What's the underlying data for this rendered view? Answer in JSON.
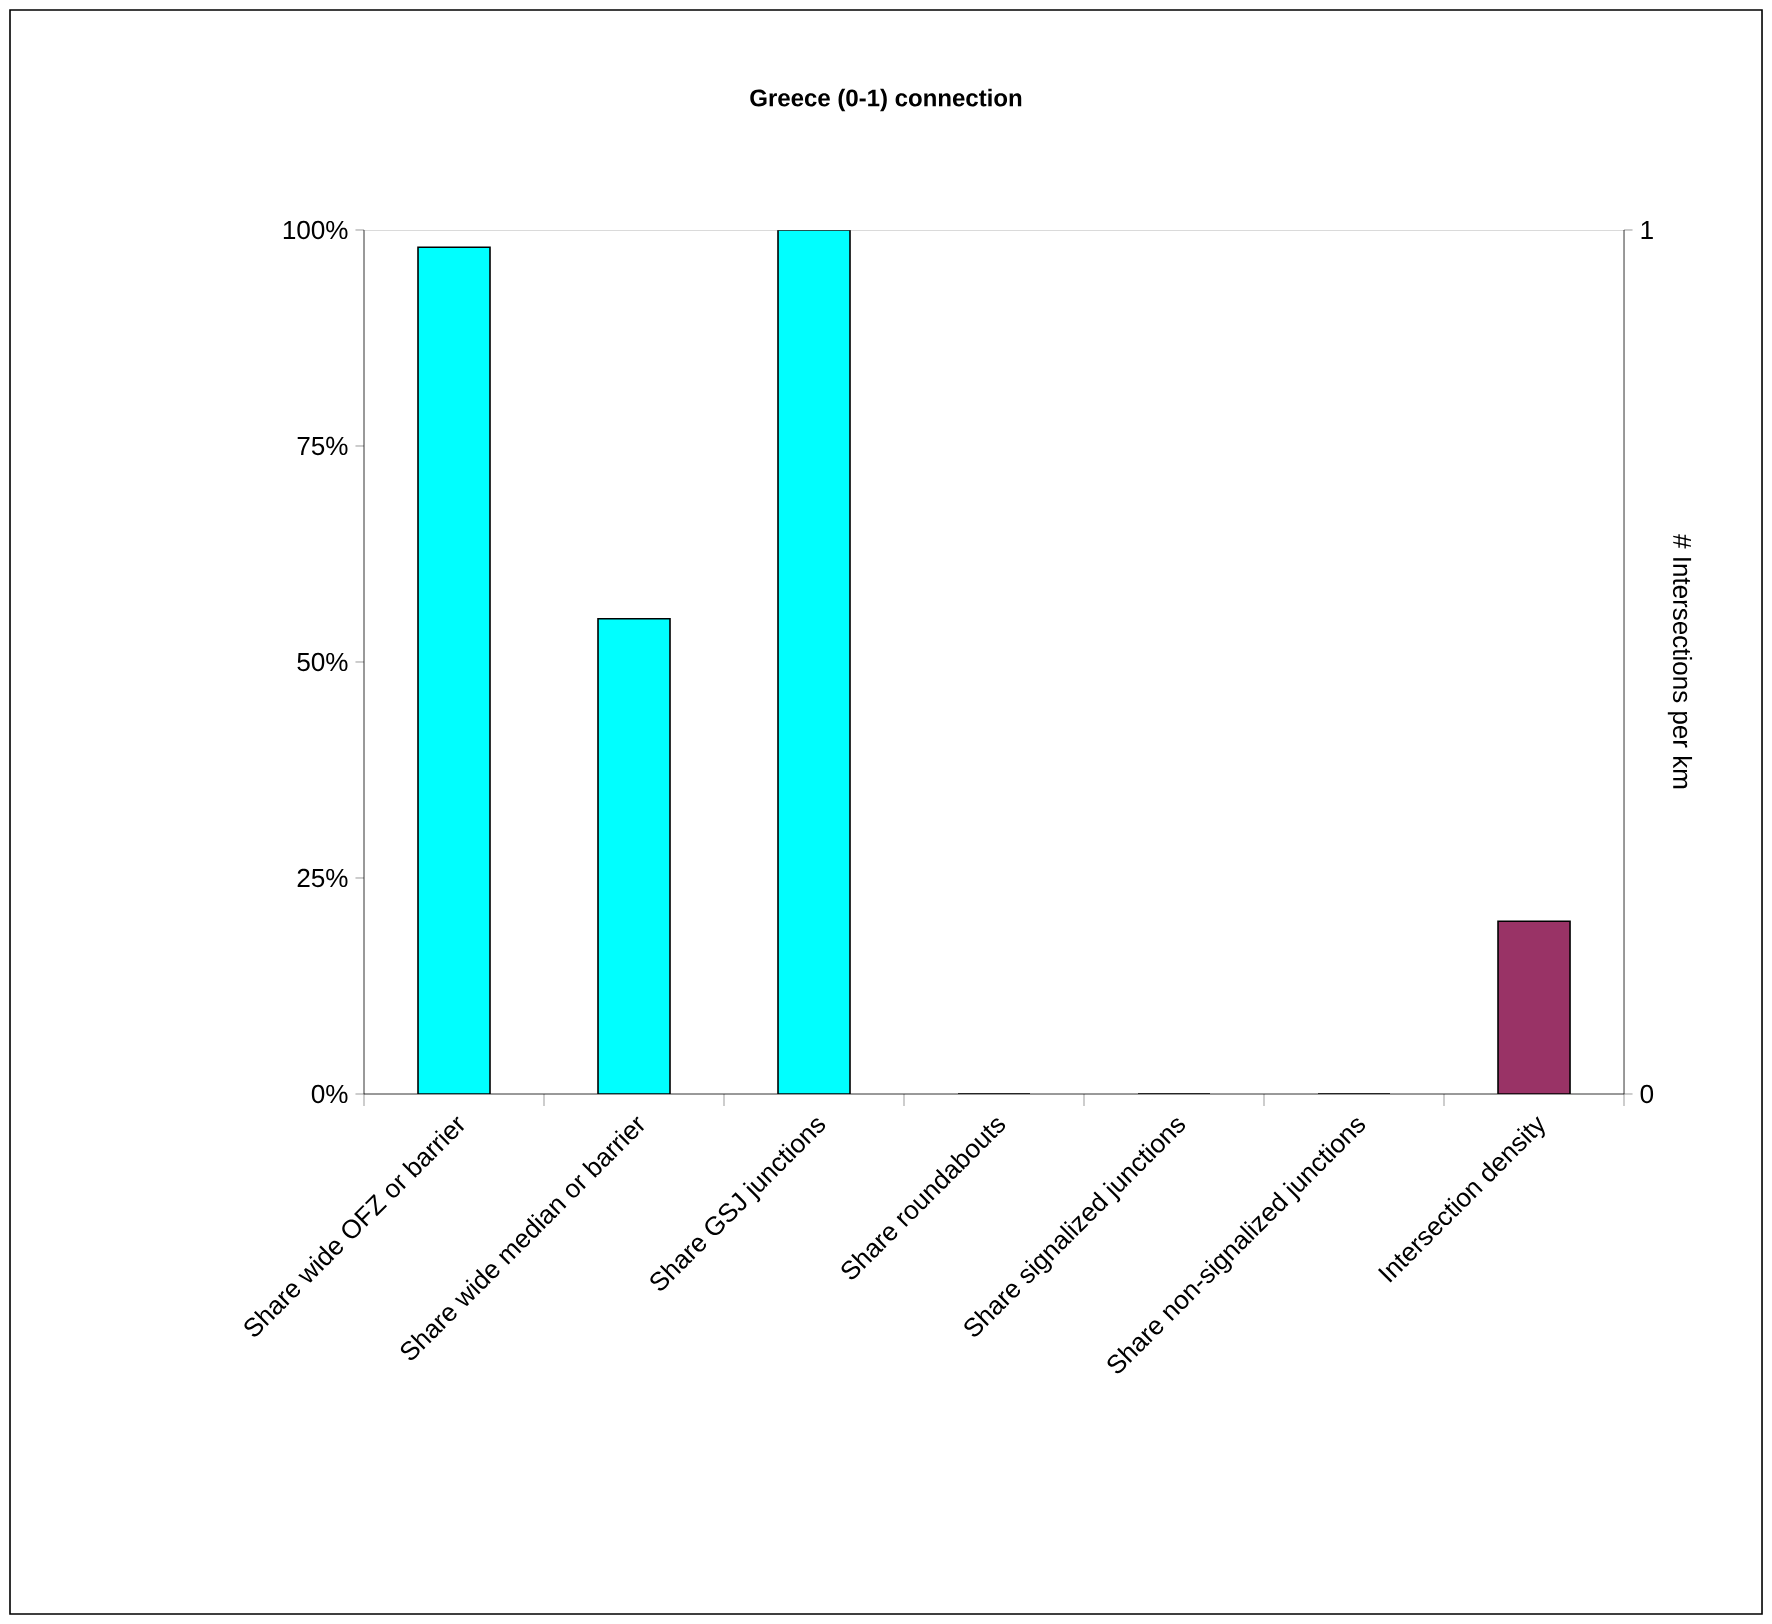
{
  "chart_data": {
    "type": "bar",
    "title": "Greece (0-1) connection",
    "y2label": "# Intersections per km",
    "categories": [
      "Share wide OFZ or barrier",
      "Share wide median or barrier",
      "Share GSJ junctions",
      "Share roundabouts",
      "Share signalized junctions",
      "Share non-signalized junctions",
      "Intersection density"
    ],
    "series": [
      {
        "color": "#00ffff",
        "values": [
          98,
          55,
          100,
          0,
          0,
          0,
          null
        ]
      },
      {
        "color": "#993366",
        "axis": "y2",
        "values": [
          null,
          null,
          null,
          null,
          null,
          null,
          0.2
        ]
      }
    ],
    "ylim": [
      0,
      100
    ],
    "yticks": [
      {
        "value": 0,
        "label": "0%"
      },
      {
        "value": 25,
        "label": "25%"
      },
      {
        "value": 50,
        "label": "50%"
      },
      {
        "value": 75,
        "label": "75%"
      },
      {
        "value": 100,
        "label": "100%"
      }
    ],
    "y2lim": [
      0,
      1
    ],
    "y2ticks": [
      0,
      1
    ]
  }
}
